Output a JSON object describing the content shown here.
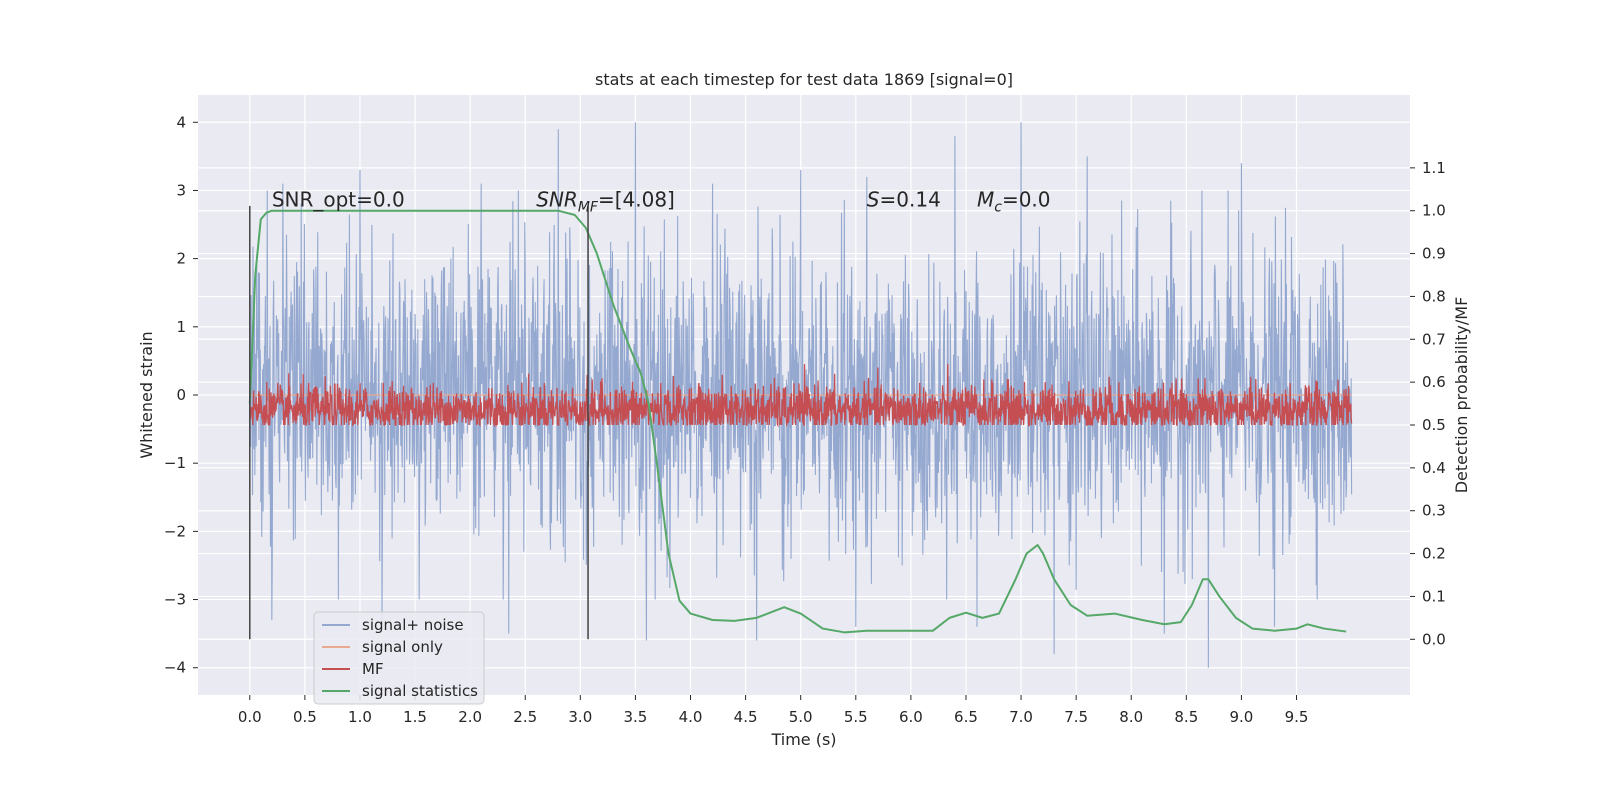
{
  "chart_data": {
    "type": "line",
    "title": "stats at each timestep for test data 1869 [signal=0]",
    "xlabel": "Time (s)",
    "ylabel": "Whitened strain",
    "ylabel_right": "Detection probability/MF",
    "xlim": [
      -0.47,
      10.53
    ],
    "ylim": [
      -4.4,
      4.4
    ],
    "ylim_right": [
      -0.13,
      1.27
    ],
    "x_ticks": [
      0.0,
      0.5,
      1.0,
      1.5,
      2.0,
      2.5,
      3.0,
      3.5,
      4.0,
      4.5,
      5.0,
      5.5,
      6.0,
      6.5,
      7.0,
      7.5,
      8.0,
      8.5,
      9.0,
      9.5
    ],
    "x_tick_labels": [
      "0.0",
      "0.5",
      "1.0",
      "1.5",
      "2.0",
      "2.5",
      "3.0",
      "3.5",
      "4.0",
      "4.5",
      "5.0",
      "5.5",
      "6.0",
      "6.5",
      "7.0",
      "7.5",
      "8.0",
      "8.5",
      "9.0",
      "9.5"
    ],
    "y_ticks": [
      4,
      3,
      2,
      1,
      0,
      -1,
      -2,
      -3,
      -4
    ],
    "y_tick_labels": [
      "4",
      "3",
      "2",
      "1",
      "0",
      "−1",
      "−2",
      "−3",
      "−4"
    ],
    "y_right_ticks": [
      1.1,
      1.0,
      0.9,
      0.8,
      0.7,
      0.6,
      0.5,
      0.4,
      0.3,
      0.2,
      0.1,
      0.0
    ],
    "y_right_tick_labels": [
      "1.1",
      "1.0",
      "0.9",
      "0.8",
      "0.7",
      "0.6",
      "0.5",
      "0.4",
      "0.3",
      "0.2",
      "0.1",
      "0.0"
    ],
    "grid": true,
    "legend_position": "lower-left",
    "colors": {
      "background": "#eaeaf2",
      "grid": "#ffffff",
      "signal_noise": "#95a9d0",
      "signal_only": "#e9a98f",
      "mf": "#c44e52",
      "statistics": "#55a868",
      "marker": "#444444"
    },
    "series": [
      {
        "name": "signal+ noise",
        "x_range": [
          0.0,
          10.0
        ],
        "values_description_envelope": {
          "upper_peaks_x": [
            0.3,
            1.0,
            2.1,
            2.8,
            3.5,
            4.2,
            5.0,
            5.6,
            6.4,
            7.0,
            7.6,
            8.3,
            9.0,
            9.3,
            9.95
          ],
          "upper_peaks_y": [
            3.1,
            3.3,
            3.1,
            3.9,
            4.0,
            3.1,
            3.3,
            3.2,
            3.8,
            4.0,
            3.5,
            3.3,
            3.4,
            3.0,
            3.9
          ],
          "lower_peaks_x": [
            0.2,
            1.2,
            2.35,
            3.6,
            4.6,
            5.5,
            6.6,
            7.3,
            8.3,
            8.7,
            9.3,
            9.95
          ],
          "lower_peaks_y": [
            -3.3,
            -3.3,
            -3.5,
            -3.6,
            -3.6,
            -3.4,
            -3.4,
            -3.8,
            -3.5,
            -4.0,
            -3.4,
            -1.5
          ]
        }
      },
      {
        "name": "signal only",
        "x": [
          0.0,
          10.0
        ],
        "y": [
          0.0,
          0.0
        ]
      },
      {
        "name": "MF",
        "x_range": [
          0.0,
          10.0
        ],
        "y_right_range": [
          0.5,
          0.66
        ]
      },
      {
        "name": "signal statistics",
        "x": [
          0.0,
          0.05,
          0.1,
          0.15,
          0.2,
          0.3,
          0.5,
          1.0,
          2.0,
          2.5,
          2.8,
          2.95,
          3.05,
          3.15,
          3.3,
          3.45,
          3.55,
          3.62,
          3.7,
          3.8,
          3.9,
          4.0,
          4.2,
          4.4,
          4.6,
          4.75,
          4.85,
          5.0,
          5.2,
          5.4,
          5.6,
          5.8,
          6.0,
          6.2,
          6.35,
          6.5,
          6.65,
          6.8,
          6.95,
          7.05,
          7.15,
          7.2,
          7.3,
          7.45,
          7.6,
          7.85,
          8.1,
          8.3,
          8.45,
          8.55,
          8.65,
          8.7,
          8.8,
          8.95,
          9.1,
          9.3,
          9.5,
          9.6,
          9.75,
          9.95
        ],
        "y": [
          0.55,
          0.85,
          0.98,
          0.995,
          1.0,
          1.0,
          1.0,
          1.0,
          1.0,
          1.0,
          1.0,
          0.99,
          0.96,
          0.9,
          0.78,
          0.68,
          0.62,
          0.55,
          0.4,
          0.2,
          0.09,
          0.06,
          0.045,
          0.043,
          0.05,
          0.065,
          0.075,
          0.06,
          0.025,
          0.016,
          0.02,
          0.02,
          0.02,
          0.02,
          0.05,
          0.062,
          0.05,
          0.06,
          0.14,
          0.2,
          0.22,
          0.2,
          0.14,
          0.08,
          0.055,
          0.06,
          0.045,
          0.035,
          0.04,
          0.08,
          0.14,
          0.14,
          0.1,
          0.05,
          0.025,
          0.02,
          0.025,
          0.035,
          0.025,
          0.018
        ]
      }
    ],
    "vertical_markers_x": [
      0.0,
      3.07
    ],
    "annotations": [
      {
        "text": "SNR_opt=0.0",
        "x": 0.2,
        "y_right": 1.01
      },
      {
        "text_main": "SNR",
        "text_sub": "MF",
        "text_rest": "=[4.08]",
        "x": 2.6,
        "y_right": 1.01
      },
      {
        "text_main": "S",
        "text_rest": "=0.14",
        "x": 5.6,
        "y_right": 1.01
      },
      {
        "text_main": "M",
        "text_sub": "c",
        "text_rest": "=0.0",
        "x": 6.6,
        "y_right": 1.01
      }
    ]
  }
}
